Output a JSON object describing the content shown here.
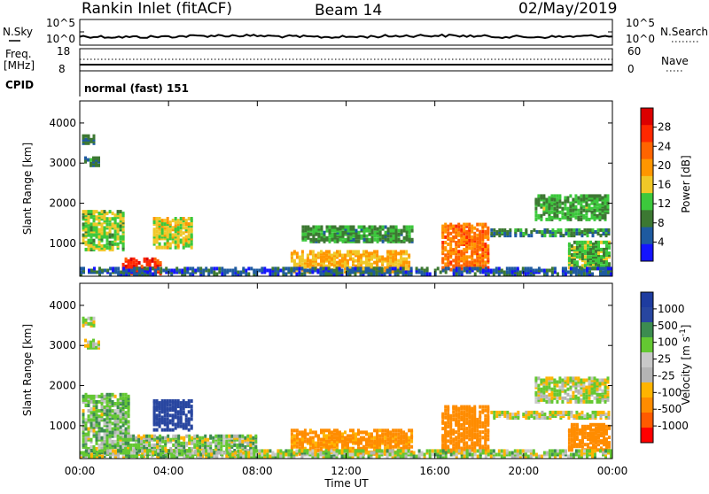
{
  "header": {
    "title": "Rankin Inlet (fitACF)",
    "beam": "Beam 14",
    "date": "02/May/2019"
  },
  "noise_panel": {
    "left_label": "N.Sky",
    "left_ticks": [
      "10^5",
      "10^0"
    ],
    "right_label": "N.Search",
    "right_ticks": [
      "10^5",
      "10^0"
    ]
  },
  "freq_panel": {
    "left_label_line1": "Freq.",
    "left_label_line2": "[MHz]",
    "left_ticks": [
      "18",
      "8"
    ],
    "right_label": "Nave",
    "right_ticks": [
      "60",
      "0"
    ]
  },
  "cpid": {
    "label": "CPID",
    "mode": "normal (fast) 151"
  },
  "colors": {
    "power_scale": [
      "#1414ff",
      "#1e5aa0",
      "#3c7832",
      "#3cc83c",
      "#f0c828",
      "#ff9600",
      "#ff6400",
      "#ff2800",
      "#dc0000"
    ],
    "velocity_scale": [
      "#ff0000",
      "#ff5a00",
      "#ff8c00",
      "#ffb400",
      "#b4b4b4",
      "#c8c8c8",
      "#64c832",
      "#3c8c50",
      "#2846a0",
      "#1e3ca0"
    ]
  },
  "chart_data": [
    {
      "type": "heatmap",
      "name": "power",
      "ylabel": "Slant Range [km]",
      "ylim": [
        180,
        4550
      ],
      "yticks": [
        "1000",
        "2000",
        "3000",
        "4000"
      ],
      "xlim": [
        0,
        24
      ],
      "colorbar_label": "Power [dB]",
      "colorbar_ticks": [
        "4",
        "8",
        "12",
        "16",
        "20",
        "24",
        "28"
      ],
      "regions": [
        {
          "t0": 1.9,
          "t1": 3.7,
          "r0": 200,
          "r1": 600,
          "power": 26
        },
        {
          "t0": 0.1,
          "t1": 2.0,
          "r0": 800,
          "r1": 1750,
          "power": 14
        },
        {
          "t0": 3.3,
          "t1": 5.1,
          "r0": 850,
          "r1": 1600,
          "power": 16
        },
        {
          "t0": 0.1,
          "t1": 0.6,
          "r0": 3450,
          "r1": 3650,
          "power": 9
        },
        {
          "t0": 0.2,
          "t1": 0.9,
          "r0": 2900,
          "r1": 3100,
          "power": 9
        },
        {
          "t0": 9.5,
          "t1": 14.8,
          "r0": 250,
          "r1": 750,
          "power": 18
        },
        {
          "t0": 10.0,
          "t1": 15.0,
          "r0": 1000,
          "r1": 1400,
          "power": 11
        },
        {
          "t0": 16.3,
          "t1": 18.4,
          "r0": 300,
          "r1": 1450,
          "power": 22
        },
        {
          "t0": 18.5,
          "t1": 23.8,
          "r0": 1150,
          "r1": 1300,
          "power": 10
        },
        {
          "t0": 20.5,
          "t1": 23.8,
          "r0": 1550,
          "r1": 2150,
          "power": 12
        },
        {
          "t0": 22.0,
          "t1": 23.9,
          "r0": 350,
          "r1": 1000,
          "power": 13
        },
        {
          "t0": 0.0,
          "t1": 24.0,
          "r0": 190,
          "r1": 360,
          "power": 7
        }
      ]
    },
    {
      "type": "heatmap",
      "name": "velocity",
      "ylabel": "Slant Range [km]",
      "ylim": [
        180,
        4550
      ],
      "yticks": [
        "1000",
        "2000",
        "3000",
        "4000"
      ],
      "xlim": [
        0,
        24
      ],
      "xticks": [
        "00:00",
        "04:00",
        "08:00",
        "12:00",
        "16:00",
        "20:00",
        "00:00"
      ],
      "xlabel": "Time UT",
      "colorbar_label": "Velocity [m s^-1]",
      "colorbar_ticks": [
        "1000",
        "500",
        "100",
        "25",
        "-25",
        "-100",
        "-500",
        "-1000"
      ],
      "regions": [
        {
          "t0": 0.1,
          "t1": 2.2,
          "r0": 200,
          "r1": 1750,
          "velocity": 60
        },
        {
          "t0": 3.3,
          "t1": 5.1,
          "r0": 850,
          "r1": 1600,
          "velocity": 700
        },
        {
          "t0": 0.1,
          "t1": 0.6,
          "r0": 3450,
          "r1": 3650,
          "velocity": 0
        },
        {
          "t0": 0.2,
          "t1": 0.9,
          "r0": 2900,
          "r1": 3100,
          "velocity": 0
        },
        {
          "t0": 2.0,
          "t1": 8.0,
          "r0": 200,
          "r1": 700,
          "velocity": 40
        },
        {
          "t0": 9.5,
          "t1": 15.0,
          "r0": 250,
          "r1": 850,
          "velocity": -150
        },
        {
          "t0": 16.3,
          "t1": 18.4,
          "r0": 300,
          "r1": 1450,
          "velocity": -400
        },
        {
          "t0": 18.5,
          "t1": 23.8,
          "r0": 1150,
          "r1": 1300,
          "velocity": 0
        },
        {
          "t0": 20.5,
          "t1": 23.8,
          "r0": 1550,
          "r1": 2150,
          "velocity": 10
        },
        {
          "t0": 22.0,
          "t1": 23.9,
          "r0": 350,
          "r1": 1000,
          "velocity": -200
        },
        {
          "t0": 0.0,
          "t1": 24.0,
          "r0": 190,
          "r1": 360,
          "velocity": 30
        }
      ]
    }
  ]
}
